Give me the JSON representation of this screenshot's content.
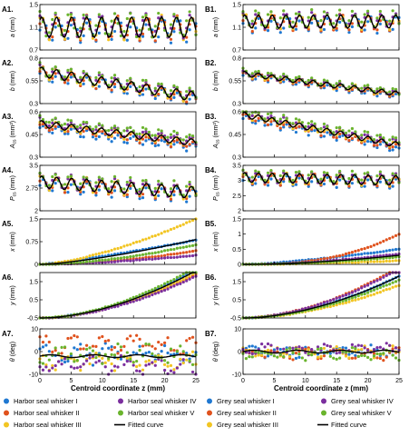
{
  "colors": {
    "whisker_I": "#1f78d1",
    "whisker_II": "#e0521d",
    "whisker_III": "#f2c522",
    "whisker_IV": "#7b2f9e",
    "whisker_V": "#6ab42d",
    "fitted": "#000000"
  },
  "columns": [
    {
      "id": "A",
      "xlabel": "Centroid coordinate z (mm)",
      "legend": [
        {
          "name": "Harbor seal whisker I",
          "color_key": "whisker_I",
          "kind": "dot"
        },
        {
          "name": "Harbor seal whisker II",
          "color_key": "whisker_II",
          "kind": "dot"
        },
        {
          "name": "Harbor seal whisker III",
          "color_key": "whisker_III",
          "kind": "dot"
        },
        {
          "name": "Harbor seal whisker IV",
          "color_key": "whisker_IV",
          "kind": "dot"
        },
        {
          "name": "Harbor seal whisker V",
          "color_key": "whisker_V",
          "kind": "dot"
        },
        {
          "name": "Fitted curve",
          "color_key": "fitted",
          "kind": "line"
        }
      ]
    },
    {
      "id": "B",
      "xlabel": "Centroid coordinate z (mm)",
      "legend": [
        {
          "name": "Grey seal whisker I",
          "color_key": "whisker_I",
          "kind": "dot"
        },
        {
          "name": "Grey seal whisker II",
          "color_key": "whisker_II",
          "kind": "dot"
        },
        {
          "name": "Grey seal whisker III",
          "color_key": "whisker_III",
          "kind": "dot"
        },
        {
          "name": "Grey seal whisker IV",
          "color_key": "whisker_IV",
          "kind": "dot"
        },
        {
          "name": "Grey seal whisker V",
          "color_key": "whisker_V",
          "kind": "dot"
        },
        {
          "name": "Fitted curve",
          "color_key": "fitted",
          "kind": "line"
        }
      ]
    }
  ],
  "chart_data": [
    {
      "panel": "A1.",
      "type": "scatter",
      "xlim": [
        0,
        25
      ],
      "ylim": [
        0.7,
        1.5
      ],
      "yticks": [
        "0.7",
        "1.1",
        "1.5"
      ],
      "yticks_v": [
        0.7,
        1.1,
        1.5
      ],
      "ylabel": "a (mm)",
      "xticks": [
        0,
        5,
        10,
        15,
        20,
        25
      ],
      "xticklabels_shown": false,
      "gen": {
        "kind": "sine",
        "base": 1.1,
        "trend": 0,
        "amp": 0.2,
        "period": 2.4,
        "spread": 0.05,
        "jitter": 0.03
      }
    },
    {
      "panel": "A2.",
      "type": "scatter",
      "xlim": [
        0,
        25
      ],
      "ylim": [
        0.3,
        0.8
      ],
      "yticks": [
        "0.3",
        "0.55",
        "0.8"
      ],
      "yticks_v": [
        0.3,
        0.55,
        0.8
      ],
      "ylabel": "b (mm)",
      "xticks": [
        0,
        5,
        10,
        15,
        20,
        25
      ],
      "xticklabels_shown": false,
      "gen": {
        "kind": "sine",
        "base": 0.65,
        "trend": -0.011,
        "amp": 0.06,
        "period": 2.4,
        "spread": 0.03,
        "jitter": 0.015
      }
    },
    {
      "panel": "A3.",
      "type": "scatter",
      "xlim": [
        0,
        25
      ],
      "ylim": [
        0.3,
        0.6
      ],
      "yticks": [
        "0.3",
        "0.45",
        "0.6"
      ],
      "yticks_v": [
        0.3,
        0.45,
        0.6
      ],
      "ylabel": "A_cs (mm²)",
      "xticks": [
        0,
        5,
        10,
        15,
        20,
        25
      ],
      "xticklabels_shown": false,
      "gen": {
        "kind": "sine",
        "base": 0.52,
        "trend": -0.005,
        "amp": 0.025,
        "period": 2.4,
        "spread": 0.03,
        "jitter": 0.01
      }
    },
    {
      "panel": "A4.",
      "type": "scatter",
      "xlim": [
        0,
        25
      ],
      "ylim": [
        2.0,
        3.5
      ],
      "yticks": [
        "2",
        "2.75",
        "3.5"
      ],
      "yticks_v": [
        2.0,
        2.75,
        3.5
      ],
      "ylabel": "P_cs (mm)",
      "xticks": [
        0,
        5,
        10,
        15,
        20,
        25
      ],
      "xticklabels_shown": false,
      "gen": {
        "kind": "sine",
        "base": 2.95,
        "trend": -0.014,
        "amp": 0.22,
        "period": 2.4,
        "spread": 0.1,
        "jitter": 0.04
      }
    },
    {
      "panel": "A5.",
      "type": "scatter",
      "xlim": [
        0,
        25
      ],
      "ylim": [
        0,
        1.5
      ],
      "yticks": [
        "0",
        "0.75",
        "1.5"
      ],
      "yticks_v": [
        0,
        0.75,
        1.5
      ],
      "ylabel": "x (mm)",
      "xticks": [
        0,
        5,
        10,
        15,
        20,
        25
      ],
      "xticklabels_shown": false,
      "gen": {
        "kind": "curve",
        "ends": [
          0.8,
          0.45,
          1.5,
          0.3,
          0.65
        ],
        "fit_end": 0.82,
        "shape": [
          1.2,
          1.8,
          1.5,
          1.6,
          1.7
        ],
        "fit_shape": 1.4,
        "jitter": 0.01
      }
    },
    {
      "panel": "A6.",
      "type": "scatter",
      "xlim": [
        0,
        25
      ],
      "ylim": [
        -0.5,
        2
      ],
      "yticks": [
        "-0.5",
        "0.5",
        "1.5"
      ],
      "yticks_v": [
        -0.5,
        0.5,
        1.5
      ],
      "ylabel": "y (mm)",
      "xticks": [
        0,
        5,
        10,
        15,
        20,
        25
      ],
      "xticklabels_shown": false,
      "gen": {
        "kind": "curve",
        "base": -0.5,
        "ends": [
          2.2,
          1.9,
          2.0,
          1.8,
          2.3
        ],
        "fit_end": 2.1,
        "shape": [
          1.8,
          1.8,
          1.8,
          1.8,
          1.8
        ],
        "fit_shape": 1.8,
        "jitter": 0.02
      }
    },
    {
      "panel": "A7.",
      "type": "scatter",
      "xlim": [
        0,
        25
      ],
      "ylim": [
        -10,
        10
      ],
      "yticks": [
        "-10",
        "0",
        "10"
      ],
      "yticks_v": [
        -10,
        0,
        10
      ],
      "ylabel": "θ (deg)",
      "xticks": [
        0,
        5,
        10,
        15,
        20,
        25
      ],
      "xticklabels_shown": true,
      "gen": {
        "kind": "noise",
        "series_bias": [
          -1,
          3,
          -4,
          -6,
          -1
        ],
        "fit_base": -2,
        "amp": 2.5
      }
    },
    {
      "panel": "B1.",
      "type": "scatter",
      "xlim": [
        0,
        25
      ],
      "ylim": [
        0.7,
        1.5
      ],
      "yticks": [
        "0.7",
        "1.1",
        "1.5"
      ],
      "yticks_v": [
        0.7,
        1.1,
        1.5
      ],
      "ylabel": "a (mm)",
      "xticks": [
        0,
        5,
        10,
        15,
        20,
        25
      ],
      "xticklabels_shown": false,
      "gen": {
        "kind": "sine",
        "base": 1.2,
        "trend": 0,
        "amp": 0.13,
        "period": 2.2,
        "spread": 0.05,
        "jitter": 0.03
      }
    },
    {
      "panel": "B2.",
      "type": "scatter",
      "xlim": [
        0,
        25
      ],
      "ylim": [
        0.3,
        0.8
      ],
      "yticks": [
        "0.3",
        "0.55",
        "0.8"
      ],
      "yticks_v": [
        0.3,
        0.55,
        0.8
      ],
      "ylabel": "b (mm)",
      "xticks": [
        0,
        5,
        10,
        15,
        20,
        25
      ],
      "xticklabels_shown": false,
      "gen": {
        "kind": "sine",
        "base": 0.63,
        "trend": -0.009,
        "amp": 0.03,
        "period": 2.2,
        "spread": 0.02,
        "jitter": 0.01
      }
    },
    {
      "panel": "B3.",
      "type": "scatter",
      "xlim": [
        0,
        25
      ],
      "ylim": [
        0.3,
        0.6
      ],
      "yticks": [
        "0.3",
        "0.45",
        "0.6"
      ],
      "yticks_v": [
        0.3,
        0.45,
        0.6
      ],
      "ylabel": "A_cs (mm²)",
      "xticks": [
        0,
        5,
        10,
        15,
        20,
        25
      ],
      "xticklabels_shown": false,
      "gen": {
        "kind": "sine",
        "base": 0.58,
        "trend": -0.008,
        "amp": 0.02,
        "period": 2.2,
        "spread": 0.025,
        "jitter": 0.01
      }
    },
    {
      "panel": "B4.",
      "type": "scatter",
      "xlim": [
        0,
        25
      ],
      "ylim": [
        2.0,
        3.5
      ],
      "yticks": [
        "2",
        "2.5",
        "3",
        "3.5"
      ],
      "yticks_v": [
        2.0,
        2.5,
        3.0,
        3.5
      ],
      "ylabel": "P_cs (mm)",
      "xticks": [
        0,
        5,
        10,
        15,
        20,
        25
      ],
      "xticklabels_shown": false,
      "gen": {
        "kind": "sine",
        "base": 3.1,
        "trend": -0.004,
        "amp": 0.18,
        "period": 2.2,
        "spread": 0.08,
        "jitter": 0.03
      }
    },
    {
      "panel": "B5.",
      "type": "scatter",
      "xlim": [
        0,
        25
      ],
      "ylim": [
        0,
        1.5
      ],
      "yticks": [
        "0",
        "0.5",
        "1",
        "1.5"
      ],
      "yticks_v": [
        0,
        0.5,
        1.0,
        1.5
      ],
      "ylabel": "x (mm)",
      "xticks": [
        0,
        5,
        10,
        15,
        20,
        25
      ],
      "xticklabels_shown": false,
      "gen": {
        "kind": "curve",
        "ends": [
          0.5,
          1.0,
          0.12,
          0.35,
          0.25
        ],
        "fit_end": 0.3,
        "shape": [
          1.4,
          2.6,
          1.6,
          1.8,
          1.8
        ],
        "fit_shape": 1.8,
        "jitter": 0.01
      }
    },
    {
      "panel": "B6.",
      "type": "scatter",
      "xlim": [
        0,
        25
      ],
      "ylim": [
        -0.5,
        2
      ],
      "yticks": [
        "-0.5",
        "0.5",
        "1.5"
      ],
      "yticks_v": [
        -0.5,
        0.5,
        1.5
      ],
      "ylabel": "y (mm)",
      "xticks": [
        0,
        5,
        10,
        15,
        20,
        25
      ],
      "xticklabels_shown": false,
      "gen": {
        "kind": "curve",
        "base": -0.5,
        "ends": [
          1.8,
          2.3,
          1.3,
          2.2,
          1.6
        ],
        "fit_end": 1.8,
        "shape": [
          1.8,
          1.8,
          1.8,
          1.8,
          1.8
        ],
        "fit_shape": 1.8,
        "jitter": 0.02
      }
    },
    {
      "panel": "B7.",
      "type": "scatter",
      "xlim": [
        0,
        25
      ],
      "ylim": [
        -10,
        10
      ],
      "yticks": [
        "-10",
        "0",
        "10"
      ],
      "yticks_v": [
        -10,
        0,
        10
      ],
      "ylabel": "θ (deg)",
      "xticks": [
        0,
        5,
        10,
        15,
        20,
        25
      ],
      "xticklabels_shown": true,
      "gen": {
        "kind": "noise",
        "series_bias": [
          0,
          -1,
          0,
          1,
          -1
        ],
        "fit_base": 0,
        "amp": 1.5
      }
    }
  ]
}
